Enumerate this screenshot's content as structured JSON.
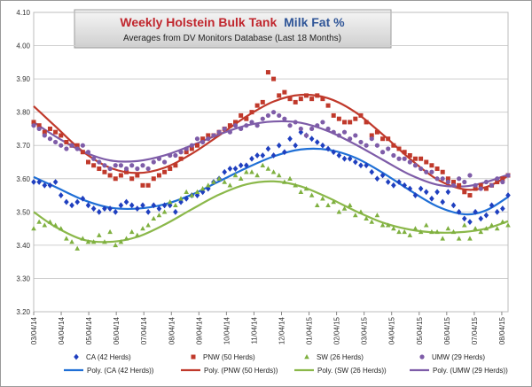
{
  "chart_data": {
    "type": "scatter",
    "title_part1": "Weekly Holstein Bulk Tank",
    "title_part2": "Milk Fat %",
    "subtitle": "Averages from DV Monitors Database (Last 18 Months)",
    "title_colors": {
      "part1": "#c0262d",
      "part2": "#2f5597"
    },
    "xlabel": "",
    "ylabel": "",
    "ylim": [
      3.2,
      4.1
    ],
    "yticks": [
      "3.20",
      "3.30",
      "3.40",
      "3.50",
      "3.60",
      "3.70",
      "3.80",
      "3.90",
      "4.00",
      "4.10"
    ],
    "xticks": [
      "03/04/14",
      "04/04/14",
      "05/04/14",
      "06/04/14",
      "07/04/14",
      "08/04/14",
      "09/04/14",
      "10/04/14",
      "11/04/14",
      "12/04/14",
      "01/04/15",
      "02/04/15",
      "03/04/15",
      "04/04/15",
      "05/04/15",
      "06/04/15",
      "07/04/15",
      "08/04/15"
    ],
    "grid": true,
    "legend_position": "bottom",
    "x_unit": "week",
    "series": [
      {
        "name": "CA (42 Herds)",
        "color": "#1f3fbf",
        "marker": "diamond",
        "trend_name": "Poly. (CA (42 Herds))",
        "values": [
          3.59,
          3.59,
          3.58,
          3.58,
          3.59,
          3.55,
          3.53,
          3.52,
          3.53,
          3.54,
          3.52,
          3.51,
          3.5,
          3.51,
          3.51,
          3.5,
          3.52,
          3.53,
          3.52,
          3.51,
          3.52,
          3.5,
          3.52,
          3.51,
          3.52,
          3.52,
          3.5,
          3.53,
          3.54,
          3.55,
          3.55,
          3.56,
          3.57,
          3.59,
          3.6,
          3.62,
          3.63,
          3.63,
          3.64,
          3.64,
          3.66,
          3.67,
          3.67,
          3.69,
          3.67,
          3.7,
          3.68,
          3.72,
          3.7,
          3.74,
          3.73,
          3.72,
          3.71,
          3.7,
          3.69,
          3.68,
          3.67,
          3.66,
          3.66,
          3.65,
          3.64,
          3.64,
          3.62,
          3.6,
          3.61,
          3.59,
          3.58,
          3.59,
          3.58,
          3.57,
          3.55,
          3.57,
          3.56,
          3.54,
          3.56,
          3.53,
          3.56,
          3.52,
          3.5,
          3.48,
          3.47,
          3.5,
          3.48,
          3.49,
          3.52,
          3.5,
          3.51,
          3.55
        ]
      },
      {
        "name": "PNW (50 Herds)",
        "color": "#c0392b",
        "marker": "square",
        "trend_name": "Poly. (PNW (50 Herds))",
        "values": [
          3.77,
          3.76,
          3.74,
          3.75,
          3.74,
          3.73,
          3.71,
          3.7,
          3.7,
          3.68,
          3.65,
          3.64,
          3.63,
          3.62,
          3.61,
          3.6,
          3.61,
          3.62,
          3.6,
          3.61,
          3.58,
          3.58,
          3.6,
          3.61,
          3.62,
          3.63,
          3.64,
          3.66,
          3.68,
          3.69,
          3.7,
          3.72,
          3.73,
          3.73,
          3.74,
          3.75,
          3.76,
          3.77,
          3.79,
          3.78,
          3.8,
          3.82,
          3.83,
          3.92,
          3.9,
          3.85,
          3.86,
          3.84,
          3.83,
          3.84,
          3.85,
          3.84,
          3.85,
          3.84,
          3.82,
          3.79,
          3.78,
          3.77,
          3.77,
          3.78,
          3.79,
          3.77,
          3.73,
          3.74,
          3.72,
          3.72,
          3.7,
          3.69,
          3.68,
          3.67,
          3.66,
          3.66,
          3.65,
          3.64,
          3.63,
          3.62,
          3.6,
          3.59,
          3.58,
          3.56,
          3.55,
          3.57,
          3.58,
          3.57,
          3.58,
          3.59,
          3.6,
          3.61
        ]
      },
      {
        "name": "SW (26 Herds)",
        "color": "#7fb040",
        "marker": "triangle",
        "trend_name": "Poly. (SW (26 Herds))",
        "values": [
          3.45,
          3.47,
          3.46,
          3.47,
          3.46,
          3.45,
          3.42,
          3.41,
          3.39,
          3.42,
          3.41,
          3.41,
          3.43,
          3.41,
          3.44,
          3.4,
          3.41,
          3.42,
          3.44,
          3.43,
          3.45,
          3.46,
          3.48,
          3.49,
          3.5,
          3.53,
          3.52,
          3.54,
          3.56,
          3.55,
          3.56,
          3.57,
          3.58,
          3.59,
          3.6,
          3.59,
          3.58,
          3.61,
          3.6,
          3.62,
          3.62,
          3.61,
          3.64,
          3.63,
          3.62,
          3.61,
          3.59,
          3.6,
          3.58,
          3.56,
          3.57,
          3.55,
          3.52,
          3.54,
          3.52,
          3.53,
          3.5,
          3.51,
          3.52,
          3.49,
          3.5,
          3.48,
          3.47,
          3.49,
          3.46,
          3.46,
          3.45,
          3.44,
          3.44,
          3.43,
          3.45,
          3.44,
          3.46,
          3.44,
          3.44,
          3.42,
          3.45,
          3.44,
          3.42,
          3.46,
          3.42,
          3.45,
          3.44,
          3.45,
          3.46,
          3.45,
          3.47,
          3.46
        ]
      },
      {
        "name": "UMW (29 Herds)",
        "color": "#7e5ca8",
        "marker": "circle",
        "trend_name": "Poly. (UMW (29 Herds))",
        "values": [
          3.76,
          3.75,
          3.73,
          3.72,
          3.71,
          3.7,
          3.69,
          3.7,
          3.69,
          3.7,
          3.68,
          3.66,
          3.65,
          3.64,
          3.63,
          3.64,
          3.64,
          3.63,
          3.64,
          3.63,
          3.64,
          3.63,
          3.65,
          3.66,
          3.65,
          3.67,
          3.67,
          3.68,
          3.69,
          3.7,
          3.72,
          3.71,
          3.72,
          3.73,
          3.74,
          3.75,
          3.74,
          3.76,
          3.75,
          3.76,
          3.77,
          3.76,
          3.78,
          3.79,
          3.8,
          3.79,
          3.78,
          3.76,
          3.77,
          3.75,
          3.73,
          3.75,
          3.76,
          3.77,
          3.75,
          3.74,
          3.73,
          3.74,
          3.72,
          3.73,
          3.71,
          3.7,
          3.72,
          3.7,
          3.68,
          3.69,
          3.67,
          3.66,
          3.66,
          3.65,
          3.64,
          3.63,
          3.62,
          3.62,
          3.6,
          3.6,
          3.59,
          3.58,
          3.6,
          3.59,
          3.61,
          3.58,
          3.57,
          3.59,
          3.58,
          3.6,
          3.59,
          3.61
        ]
      }
    ],
    "trends": [
      {
        "name": "Poly. (CA (42 Herds))",
        "color": "#1f6fd6",
        "x": [
          0,
          4,
          9,
          14,
          19,
          24,
          29,
          34,
          39,
          44,
          49,
          54,
          59,
          64,
          69,
          74,
          79,
          83,
          87
        ],
        "y": [
          3.605,
          3.575,
          3.537,
          3.513,
          3.51,
          3.523,
          3.552,
          3.592,
          3.632,
          3.667,
          3.688,
          3.687,
          3.663,
          3.618,
          3.565,
          3.517,
          3.493,
          3.505,
          3.545
        ]
      },
      {
        "name": "Poly. (PNW (50 Herds))",
        "color": "#c0392b",
        "x": [
          0,
          4,
          9,
          14,
          19,
          24,
          29,
          34,
          39,
          44,
          49,
          54,
          59,
          64,
          69,
          74,
          79,
          83,
          87
        ],
        "y": [
          3.818,
          3.757,
          3.682,
          3.633,
          3.617,
          3.633,
          3.675,
          3.73,
          3.787,
          3.832,
          3.852,
          3.842,
          3.8,
          3.733,
          3.66,
          3.598,
          3.568,
          3.575,
          3.608
        ]
      },
      {
        "name": "Poly. (SW (26 Herds))",
        "color": "#8bb84a",
        "x": [
          0,
          4,
          9,
          14,
          19,
          24,
          29,
          34,
          39,
          44,
          49,
          54,
          59,
          64,
          69,
          74,
          79,
          83,
          87
        ],
        "y": [
          3.5,
          3.455,
          3.417,
          3.41,
          3.425,
          3.462,
          3.508,
          3.552,
          3.583,
          3.592,
          3.577,
          3.543,
          3.503,
          3.468,
          3.447,
          3.438,
          3.44,
          3.45,
          3.472
        ]
      },
      {
        "name": "Poly. (UMW (29 Herds))",
        "color": "#7e5ca8",
        "x": [
          0,
          4,
          9,
          14,
          19,
          24,
          29,
          34,
          39,
          44,
          49,
          54,
          59,
          64,
          69,
          74,
          79,
          83,
          87
        ],
        "y": [
          3.77,
          3.727,
          3.682,
          3.655,
          3.653,
          3.67,
          3.7,
          3.733,
          3.76,
          3.772,
          3.768,
          3.743,
          3.703,
          3.657,
          3.612,
          3.582,
          3.577,
          3.59,
          3.612
        ]
      }
    ]
  }
}
